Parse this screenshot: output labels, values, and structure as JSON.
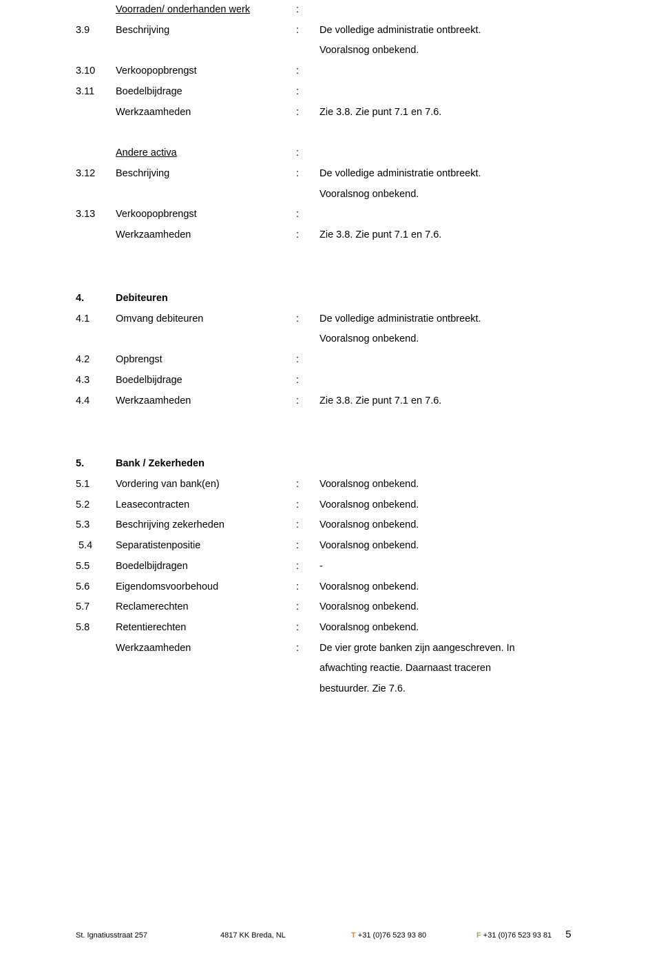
{
  "s3": {
    "header": "Voorraden/ onderhanden werk",
    "header_colon": ":",
    "r39_num": "3.9",
    "r39_label": "Beschrijving",
    "r39_colon": ":",
    "r39_val": "De volledige administratie ontbreekt.",
    "r39_val2": "Vooralsnog onbekend.",
    "r310_num": "3.10",
    "r310_label": "Verkoopopbrengst",
    "r310_colon": ":",
    "r311_num": "3.11",
    "r311_label": "Boedelbijdrage",
    "r311_colon": ":",
    "wz_label": "Werkzaamheden",
    "wz_colon": ":",
    "wz_val": "Zie 3.8. Zie punt 7.1 en 7.6.",
    "aa_header": "Andere activa",
    "aa_colon": ":",
    "r312_num": "3.12",
    "r312_label": "Beschrijving",
    "r312_colon": ":",
    "r312_val": "De volledige administratie ontbreekt.",
    "r312_val2": "Vooralsnog onbekend.",
    "r313_num": "3.13",
    "r313_label": "Verkoopopbrengst",
    "r313_colon": ":",
    "wz2_label": "Werkzaamheden",
    "wz2_colon": ":",
    "wz2_val": "Zie 3.8. Zie punt 7.1 en 7.6."
  },
  "s4": {
    "num": "4.",
    "title": "Debiteuren",
    "r41_num": "4.1",
    "r41_label": "Omvang debiteuren",
    "r41_colon": ":",
    "r41_val": "De volledige administratie ontbreekt.",
    "r41_val2": "Vooralsnog onbekend.",
    "r42_num": "4.2",
    "r42_label": "Opbrengst",
    "r42_colon": ":",
    "r43_num": "4.3",
    "r43_label": "Boedelbijdrage",
    "r43_colon": ":",
    "r44_num": "4.4",
    "r44_label": "Werkzaamheden",
    "r44_colon": ":",
    "r44_val": "Zie 3.8. Zie punt 7.1 en 7.6."
  },
  "s5": {
    "num": "5.",
    "title": "Bank / Zekerheden",
    "r51_num": "5.1",
    "r51_label": "Vordering van bank(en)",
    "r51_colon": ":",
    "r51_val": "Vooralsnog onbekend.",
    "r52_num": "5.2",
    "r52_label": "Leasecontracten",
    "r52_colon": ":",
    "r52_val": "Vooralsnog onbekend.",
    "r53_num": "5.3",
    "r53_label": "Beschrijving zekerheden",
    "r53_colon": ":",
    "r53_val": "Vooralsnog onbekend.",
    "r54_num": " 5.4",
    "r54_label": "Separatistenpositie",
    "r54_colon": ":",
    "r54_val": "Vooralsnog onbekend.",
    "r55_num": "5.5",
    "r55_label": "Boedelbijdragen",
    "r55_colon": ":",
    "r55_val": "-",
    "r56_num": "5.6",
    "r56_label": "Eigendomsvoorbehoud",
    "r56_colon": ":",
    "r56_val": "Vooralsnog onbekend.",
    "r57_num": "5.7",
    "r57_label": "Reclamerechten",
    "r57_colon": ":",
    "r57_val": "Vooralsnog onbekend.",
    "r58_num": "5.8",
    "r58_label": "Retentierechten",
    "r58_colon": ":",
    "r58_val": "Vooralsnog onbekend.",
    "wz_label": "Werkzaamheden",
    "wz_colon": ":",
    "wz_val": "De vier grote banken zijn aangeschreven. In",
    "wz_val2": "afwachting reactie. Daarnaast traceren",
    "wz_val3": "bestuurder. Zie 7.6."
  },
  "footer": {
    "addr1": "St. Ignatiusstraat 257",
    "addr2": "4817 KK  Breda, NL",
    "tel_prefix": "T",
    "tel": " +31 (0)76 523 93 80",
    "fax_prefix": "F",
    "fax": " +31 (0)76 523 93 81",
    "page": "5"
  }
}
